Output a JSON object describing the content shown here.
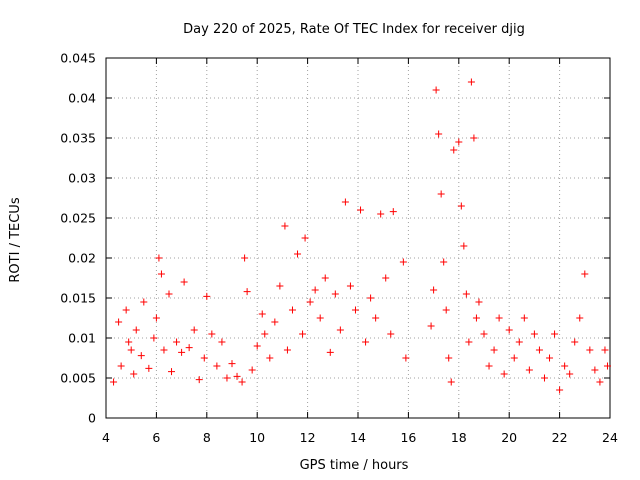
{
  "chart_data": {
    "type": "scatter",
    "title": "Day 220 of 2025, Rate Of TEC Index for receiver djig",
    "xlabel": "GPS time / hours",
    "ylabel": "ROTI / TECUs",
    "xlim": [
      4,
      24
    ],
    "ylim": [
      0,
      0.045
    ],
    "xticks": [
      "4",
      "6",
      "8",
      "10",
      "12",
      "14",
      "16",
      "18",
      "20",
      "22",
      "24"
    ],
    "yticks": [
      "0",
      "0.005",
      "0.01",
      "0.015",
      "0.02",
      "0.025",
      "0.03",
      "0.035",
      "0.04",
      "0.045"
    ],
    "grid": true,
    "marker": "+",
    "color": "#ff0000",
    "series": [
      {
        "name": "ROTI",
        "points": [
          [
            4.3,
            0.0045
          ],
          [
            4.5,
            0.012
          ],
          [
            4.6,
            0.0065
          ],
          [
            4.8,
            0.0135
          ],
          [
            4.9,
            0.0095
          ],
          [
            5.0,
            0.0085
          ],
          [
            5.1,
            0.0055
          ],
          [
            5.2,
            0.011
          ],
          [
            5.4,
            0.0078
          ],
          [
            5.5,
            0.0145
          ],
          [
            5.7,
            0.0062
          ],
          [
            5.9,
            0.01
          ],
          [
            6.0,
            0.0125
          ],
          [
            6.1,
            0.02
          ],
          [
            6.2,
            0.018
          ],
          [
            6.3,
            0.0085
          ],
          [
            6.5,
            0.0155
          ],
          [
            6.6,
            0.0058
          ],
          [
            6.8,
            0.0095
          ],
          [
            7.0,
            0.0082
          ],
          [
            7.1,
            0.017
          ],
          [
            7.3,
            0.0088
          ],
          [
            7.5,
            0.011
          ],
          [
            7.7,
            0.0048
          ],
          [
            7.9,
            0.0075
          ],
          [
            8.0,
            0.0152
          ],
          [
            8.2,
            0.0105
          ],
          [
            8.4,
            0.0065
          ],
          [
            8.6,
            0.0095
          ],
          [
            8.8,
            0.005
          ],
          [
            9.0,
            0.0068
          ],
          [
            9.2,
            0.0052
          ],
          [
            9.4,
            0.0045
          ],
          [
            9.5,
            0.02
          ],
          [
            9.6,
            0.0158
          ],
          [
            9.8,
            0.006
          ],
          [
            10.0,
            0.009
          ],
          [
            10.2,
            0.013
          ],
          [
            10.3,
            0.0105
          ],
          [
            10.5,
            0.0075
          ],
          [
            10.7,
            0.012
          ],
          [
            10.9,
            0.0165
          ],
          [
            11.1,
            0.024
          ],
          [
            11.2,
            0.0085
          ],
          [
            11.4,
            0.0135
          ],
          [
            11.6,
            0.0205
          ],
          [
            11.8,
            0.0105
          ],
          [
            11.9,
            0.0225
          ],
          [
            12.1,
            0.0145
          ],
          [
            12.3,
            0.016
          ],
          [
            12.5,
            0.0125
          ],
          [
            12.7,
            0.0175
          ],
          [
            12.9,
            0.0082
          ],
          [
            13.1,
            0.0155
          ],
          [
            13.3,
            0.011
          ],
          [
            13.5,
            0.027
          ],
          [
            13.7,
            0.0165
          ],
          [
            13.9,
            0.0135
          ],
          [
            14.1,
            0.026
          ],
          [
            14.3,
            0.0095
          ],
          [
            14.5,
            0.015
          ],
          [
            14.7,
            0.0125
          ],
          [
            14.9,
            0.0255
          ],
          [
            15.1,
            0.0175
          ],
          [
            15.3,
            0.0105
          ],
          [
            15.4,
            0.0258
          ],
          [
            15.8,
            0.0195
          ],
          [
            15.9,
            0.0075
          ],
          [
            16.9,
            0.0115
          ],
          [
            17.0,
            0.016
          ],
          [
            17.1,
            0.041
          ],
          [
            17.2,
            0.0355
          ],
          [
            17.3,
            0.028
          ],
          [
            17.4,
            0.0195
          ],
          [
            17.5,
            0.0135
          ],
          [
            17.6,
            0.0075
          ],
          [
            17.7,
            0.0045
          ],
          [
            17.8,
            0.0335
          ],
          [
            18.0,
            0.0345
          ],
          [
            18.1,
            0.0265
          ],
          [
            18.2,
            0.0215
          ],
          [
            18.3,
            0.0155
          ],
          [
            18.4,
            0.0095
          ],
          [
            18.5,
            0.042
          ],
          [
            18.6,
            0.035
          ],
          [
            18.7,
            0.0125
          ],
          [
            18.8,
            0.0145
          ],
          [
            19.0,
            0.0105
          ],
          [
            19.2,
            0.0065
          ],
          [
            19.4,
            0.0085
          ],
          [
            19.6,
            0.0125
          ],
          [
            19.8,
            0.0055
          ],
          [
            20.0,
            0.011
          ],
          [
            20.2,
            0.0075
          ],
          [
            20.4,
            0.0095
          ],
          [
            20.6,
            0.0125
          ],
          [
            20.8,
            0.006
          ],
          [
            21.0,
            0.0105
          ],
          [
            21.2,
            0.0085
          ],
          [
            21.4,
            0.005
          ],
          [
            21.6,
            0.0075
          ],
          [
            21.8,
            0.0105
          ],
          [
            22.0,
            0.0035
          ],
          [
            22.2,
            0.0065
          ],
          [
            22.4,
            0.0055
          ],
          [
            22.6,
            0.0095
          ],
          [
            22.8,
            0.0125
          ],
          [
            23.0,
            0.018
          ],
          [
            23.2,
            0.0085
          ],
          [
            23.4,
            0.006
          ],
          [
            23.6,
            0.0045
          ],
          [
            23.8,
            0.0085
          ],
          [
            23.9,
            0.0065
          ]
        ]
      }
    ]
  }
}
